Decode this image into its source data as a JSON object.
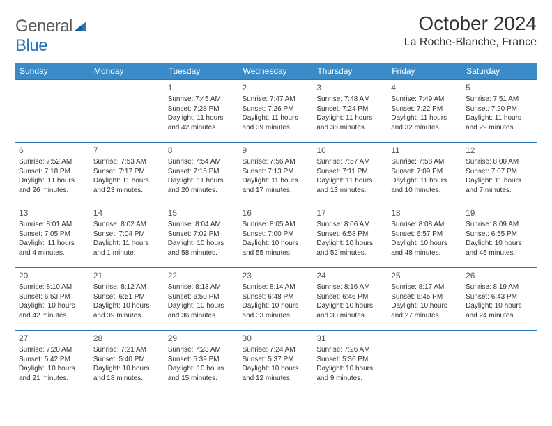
{
  "logo": {
    "general": "General",
    "blue": "Blue"
  },
  "header": {
    "title": "October 2024",
    "location": "La Roche-Blanche, France"
  },
  "colors": {
    "header_bg": "#3b8bc9",
    "header_text": "#ffffff",
    "cell_border": "#2876b8",
    "text": "#333333",
    "logo_gray": "#5a5a5a",
    "logo_blue": "#2876b8"
  },
  "weekdays": [
    "Sunday",
    "Monday",
    "Tuesday",
    "Wednesday",
    "Thursday",
    "Friday",
    "Saturday"
  ],
  "weeks": [
    [
      null,
      null,
      {
        "day": "1",
        "sunrise": "Sunrise: 7:45 AM",
        "sunset": "Sunset: 7:28 PM",
        "daylight": "Daylight: 11 hours and 42 minutes."
      },
      {
        "day": "2",
        "sunrise": "Sunrise: 7:47 AM",
        "sunset": "Sunset: 7:26 PM",
        "daylight": "Daylight: 11 hours and 39 minutes."
      },
      {
        "day": "3",
        "sunrise": "Sunrise: 7:48 AM",
        "sunset": "Sunset: 7:24 PM",
        "daylight": "Daylight: 11 hours and 36 minutes."
      },
      {
        "day": "4",
        "sunrise": "Sunrise: 7:49 AM",
        "sunset": "Sunset: 7:22 PM",
        "daylight": "Daylight: 11 hours and 32 minutes."
      },
      {
        "day": "5",
        "sunrise": "Sunrise: 7:51 AM",
        "sunset": "Sunset: 7:20 PM",
        "daylight": "Daylight: 11 hours and 29 minutes."
      }
    ],
    [
      {
        "day": "6",
        "sunrise": "Sunrise: 7:52 AM",
        "sunset": "Sunset: 7:18 PM",
        "daylight": "Daylight: 11 hours and 26 minutes."
      },
      {
        "day": "7",
        "sunrise": "Sunrise: 7:53 AM",
        "sunset": "Sunset: 7:17 PM",
        "daylight": "Daylight: 11 hours and 23 minutes."
      },
      {
        "day": "8",
        "sunrise": "Sunrise: 7:54 AM",
        "sunset": "Sunset: 7:15 PM",
        "daylight": "Daylight: 11 hours and 20 minutes."
      },
      {
        "day": "9",
        "sunrise": "Sunrise: 7:56 AM",
        "sunset": "Sunset: 7:13 PM",
        "daylight": "Daylight: 11 hours and 17 minutes."
      },
      {
        "day": "10",
        "sunrise": "Sunrise: 7:57 AM",
        "sunset": "Sunset: 7:11 PM",
        "daylight": "Daylight: 11 hours and 13 minutes."
      },
      {
        "day": "11",
        "sunrise": "Sunrise: 7:58 AM",
        "sunset": "Sunset: 7:09 PM",
        "daylight": "Daylight: 11 hours and 10 minutes."
      },
      {
        "day": "12",
        "sunrise": "Sunrise: 8:00 AM",
        "sunset": "Sunset: 7:07 PM",
        "daylight": "Daylight: 11 hours and 7 minutes."
      }
    ],
    [
      {
        "day": "13",
        "sunrise": "Sunrise: 8:01 AM",
        "sunset": "Sunset: 7:05 PM",
        "daylight": "Daylight: 11 hours and 4 minutes."
      },
      {
        "day": "14",
        "sunrise": "Sunrise: 8:02 AM",
        "sunset": "Sunset: 7:04 PM",
        "daylight": "Daylight: 11 hours and 1 minute."
      },
      {
        "day": "15",
        "sunrise": "Sunrise: 8:04 AM",
        "sunset": "Sunset: 7:02 PM",
        "daylight": "Daylight: 10 hours and 58 minutes."
      },
      {
        "day": "16",
        "sunrise": "Sunrise: 8:05 AM",
        "sunset": "Sunset: 7:00 PM",
        "daylight": "Daylight: 10 hours and 55 minutes."
      },
      {
        "day": "17",
        "sunrise": "Sunrise: 8:06 AM",
        "sunset": "Sunset: 6:58 PM",
        "daylight": "Daylight: 10 hours and 52 minutes."
      },
      {
        "day": "18",
        "sunrise": "Sunrise: 8:08 AM",
        "sunset": "Sunset: 6:57 PM",
        "daylight": "Daylight: 10 hours and 48 minutes."
      },
      {
        "day": "19",
        "sunrise": "Sunrise: 8:09 AM",
        "sunset": "Sunset: 6:55 PM",
        "daylight": "Daylight: 10 hours and 45 minutes."
      }
    ],
    [
      {
        "day": "20",
        "sunrise": "Sunrise: 8:10 AM",
        "sunset": "Sunset: 6:53 PM",
        "daylight": "Daylight: 10 hours and 42 minutes."
      },
      {
        "day": "21",
        "sunrise": "Sunrise: 8:12 AM",
        "sunset": "Sunset: 6:51 PM",
        "daylight": "Daylight: 10 hours and 39 minutes."
      },
      {
        "day": "22",
        "sunrise": "Sunrise: 8:13 AM",
        "sunset": "Sunset: 6:50 PM",
        "daylight": "Daylight: 10 hours and 36 minutes."
      },
      {
        "day": "23",
        "sunrise": "Sunrise: 8:14 AM",
        "sunset": "Sunset: 6:48 PM",
        "daylight": "Daylight: 10 hours and 33 minutes."
      },
      {
        "day": "24",
        "sunrise": "Sunrise: 8:16 AM",
        "sunset": "Sunset: 6:46 PM",
        "daylight": "Daylight: 10 hours and 30 minutes."
      },
      {
        "day": "25",
        "sunrise": "Sunrise: 8:17 AM",
        "sunset": "Sunset: 6:45 PM",
        "daylight": "Daylight: 10 hours and 27 minutes."
      },
      {
        "day": "26",
        "sunrise": "Sunrise: 8:19 AM",
        "sunset": "Sunset: 6:43 PM",
        "daylight": "Daylight: 10 hours and 24 minutes."
      }
    ],
    [
      {
        "day": "27",
        "sunrise": "Sunrise: 7:20 AM",
        "sunset": "Sunset: 5:42 PM",
        "daylight": "Daylight: 10 hours and 21 minutes."
      },
      {
        "day": "28",
        "sunrise": "Sunrise: 7:21 AM",
        "sunset": "Sunset: 5:40 PM",
        "daylight": "Daylight: 10 hours and 18 minutes."
      },
      {
        "day": "29",
        "sunrise": "Sunrise: 7:23 AM",
        "sunset": "Sunset: 5:39 PM",
        "daylight": "Daylight: 10 hours and 15 minutes."
      },
      {
        "day": "30",
        "sunrise": "Sunrise: 7:24 AM",
        "sunset": "Sunset: 5:37 PM",
        "daylight": "Daylight: 10 hours and 12 minutes."
      },
      {
        "day": "31",
        "sunrise": "Sunrise: 7:26 AM",
        "sunset": "Sunset: 5:36 PM",
        "daylight": "Daylight: 10 hours and 9 minutes."
      },
      null,
      null
    ]
  ]
}
